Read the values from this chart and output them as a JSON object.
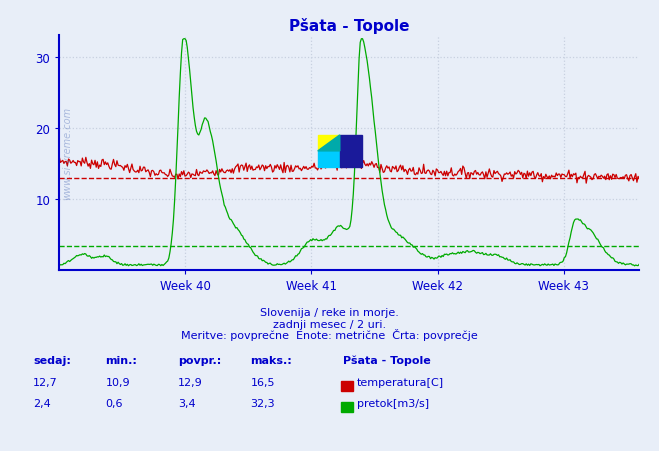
{
  "title": "Pšata - Topole",
  "bg_color": "#e8eef8",
  "plot_bg_color": "#e8eef8",
  "grid_color": "#c8d0e0",
  "axis_color": "#0000cc",
  "title_color": "#0000cc",
  "text_color": "#0000cc",
  "temp_color": "#cc0000",
  "flow_color": "#00aa00",
  "temp_avg": 12.9,
  "flow_avg": 3.4,
  "temp_min": 10.9,
  "temp_max": 16.5,
  "flow_min": 0.6,
  "flow_max": 32.3,
  "temp_current": 12.7,
  "flow_current": 2.4,
  "ylim": [
    0,
    33
  ],
  "yticks": [
    10,
    20,
    30
  ],
  "week_labels": [
    "Week 40",
    "Week 41",
    "Week 42",
    "Week 43"
  ],
  "subtitle1": "Slovenija / reke in morje.",
  "subtitle2": "zadnji mesec / 2 uri.",
  "subtitle3": "Meritve: povprečne  Enote: metrične  Črta: povprečje",
  "watermark": "www.si-vreme.com",
  "legend_title": "Pšata - Topole",
  "legend_temp": "temperatura[C]",
  "legend_flow": "pretok[m3/s]",
  "table_headers": [
    "sedaj:",
    "min.:",
    "povpr.:",
    "maks.:"
  ],
  "table_temp": [
    "12,7",
    "10,9",
    "12,9",
    "16,5"
  ],
  "table_flow": [
    "2,4",
    "0,6",
    "3,4",
    "32,3"
  ],
  "n_points": 504
}
